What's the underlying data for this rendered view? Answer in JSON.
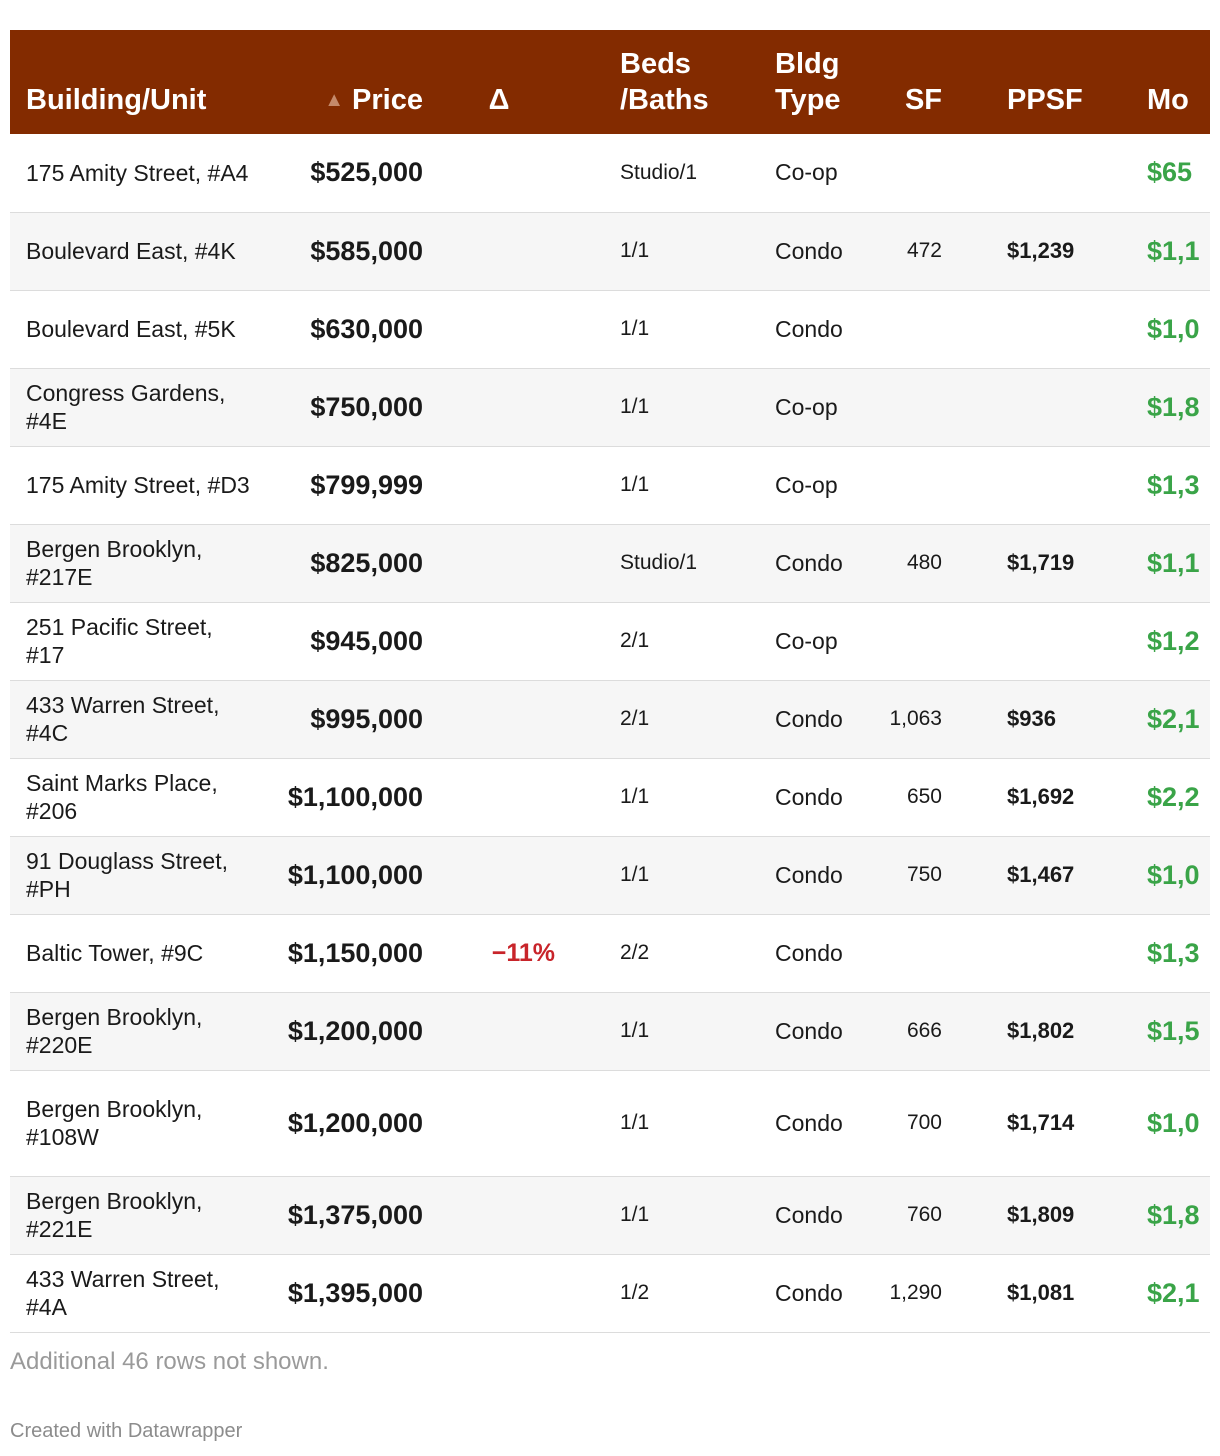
{
  "headers": {
    "unit": "Building/Unit",
    "sort_arrow": "▲",
    "price": "Price",
    "delta": "Δ",
    "beds_l1": "Beds",
    "beds_l2": "/Baths",
    "type_l1": "Bldg",
    "type_l2": "Type",
    "sf": "SF",
    "ppsf": "PPSF",
    "mo": "Mo"
  },
  "rows": [
    {
      "unit": "175 Amity Street, #A4",
      "price": "$525,000",
      "delta": "",
      "beds": "Studio/1",
      "type": "Co-op",
      "sf": "",
      "ppsf": "",
      "mo": "$65"
    },
    {
      "unit": "Boulevard East, #4K",
      "price": "$585,000",
      "delta": "",
      "beds": "1/1",
      "type": "Condo",
      "sf": "472",
      "ppsf": "$1,239",
      "mo": "$1,1"
    },
    {
      "unit": "Boulevard East, #5K",
      "price": "$630,000",
      "delta": "",
      "beds": "1/1",
      "type": "Condo",
      "sf": "",
      "ppsf": "",
      "mo": "$1,0"
    },
    {
      "unit": "Congress Gardens, #4E",
      "price": "$750,000",
      "delta": "",
      "beds": "1/1",
      "type": "Co-op",
      "sf": "",
      "ppsf": "",
      "mo": "$1,8"
    },
    {
      "unit": "175 Amity Street, #D3",
      "price": "$799,999",
      "delta": "",
      "beds": "1/1",
      "type": "Co-op",
      "sf": "",
      "ppsf": "",
      "mo": "$1,3"
    },
    {
      "unit": "Bergen Brooklyn, #217E",
      "price": "$825,000",
      "delta": "",
      "beds": "Studio/1",
      "type": "Condo",
      "sf": "480",
      "ppsf": "$1,719",
      "mo": "$1,1"
    },
    {
      "unit": "251 Pacific Street, #17",
      "price": "$945,000",
      "delta": "",
      "beds": "2/1",
      "type": "Co-op",
      "sf": "",
      "ppsf": "",
      "mo": "$1,2"
    },
    {
      "unit": "433 Warren Street, #4C",
      "price": "$995,000",
      "delta": "",
      "beds": "2/1",
      "type": "Condo",
      "sf": "1,063",
      "ppsf": "$936",
      "mo": "$2,1"
    },
    {
      "unit": "Saint Marks Place, #206",
      "price": "$1,100,000",
      "delta": "",
      "beds": "1/1",
      "type": "Condo",
      "sf": "650",
      "ppsf": "$1,692",
      "mo": "$2,2"
    },
    {
      "unit": "91 Douglass Street, #PH",
      "price": "$1,100,000",
      "delta": "",
      "beds": "1/1",
      "type": "Condo",
      "sf": "750",
      "ppsf": "$1,467",
      "mo": "$1,0"
    },
    {
      "unit": "Baltic Tower, #9C",
      "price": "$1,150,000",
      "delta": "−11%",
      "beds": "2/2",
      "type": "Condo",
      "sf": "",
      "ppsf": "",
      "mo": "$1,3"
    },
    {
      "unit": "Bergen Brooklyn, #220E",
      "price": "$1,200,000",
      "delta": "",
      "beds": "1/1",
      "type": "Condo",
      "sf": "666",
      "ppsf": "$1,802",
      "mo": "$1,5"
    },
    {
      "unit": "Bergen Brooklyn, #108W",
      "price": "$1,200,000",
      "delta": "",
      "beds": "1/1",
      "type": "Condo",
      "sf": "700",
      "ppsf": "$1,714",
      "mo": "$1,0"
    },
    {
      "unit": "Bergen Brooklyn, #221E",
      "price": "$1,375,000",
      "delta": "",
      "beds": "1/1",
      "type": "Condo",
      "sf": "760",
      "ppsf": "$1,809",
      "mo": "$1,8"
    },
    {
      "unit": "433 Warren Street, #4A",
      "price": "$1,395,000",
      "delta": "",
      "beds": "1/2",
      "type": "Condo",
      "sf": "1,290",
      "ppsf": "$1,081",
      "mo": "$2,1"
    }
  ],
  "notes": "Additional 46 rows not shown.",
  "credit": "Created with Datawrapper",
  "colors": {
    "header_bg": "#832b00",
    "negative": "#c8242a",
    "positive": "#3aa448"
  }
}
